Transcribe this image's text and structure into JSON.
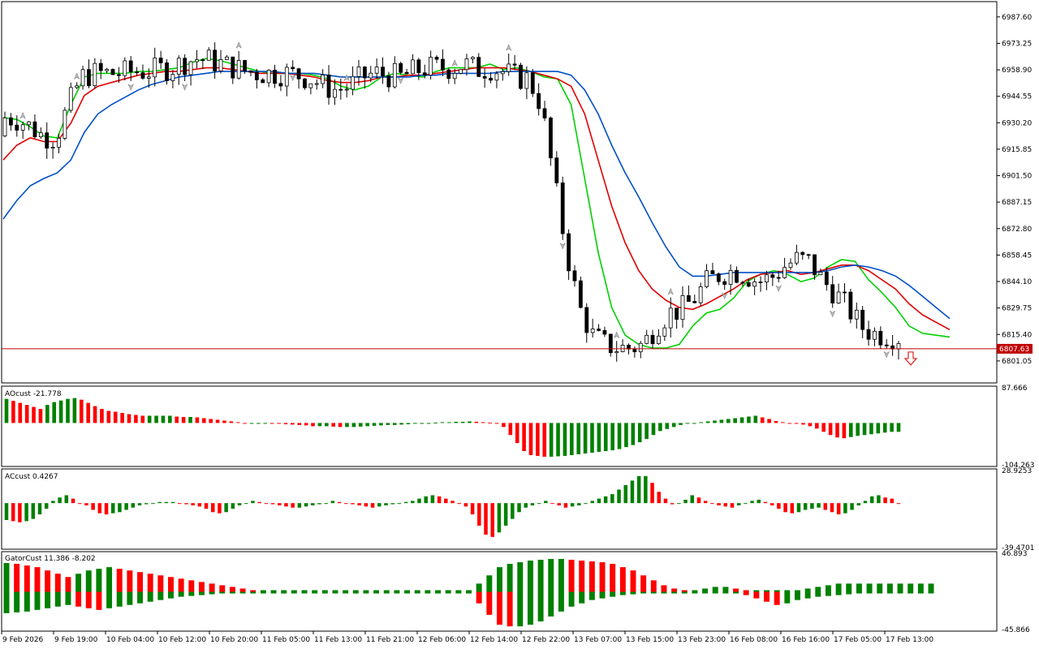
{
  "chart_data": [
    {
      "type": "candlestick",
      "panel": "main",
      "ylim": [
        6790,
        6995
      ],
      "ytick_labels": [
        "6987.60",
        "6973.25",
        "6958.90",
        "6944.55",
        "6930.20",
        "6915.85",
        "6901.50",
        "6887.15",
        "6872.80",
        "6858.45",
        "6844.10",
        "6829.75",
        "6815.40",
        "6801.05"
      ],
      "current_price": "6807.63",
      "colors": {
        "bull_body": "#ffffff",
        "bear_body": "#000000",
        "wick": "#000000",
        "ma_fast": "#00d000",
        "ma_mid": "#e00000",
        "ma_slow": "#0050c8",
        "price_line": "#c00000",
        "signal_arrow": "#e02020",
        "fractal": "#808080"
      },
      "series": [
        {
          "name": "fast",
          "values": [
            6933,
            6932,
            6928,
            6923,
            6922,
            6940,
            6955,
            6957,
            6957,
            6957,
            6958,
            6958,
            6959,
            6960,
            6963,
            6965,
            6964,
            6962,
            6960,
            6958,
            6957,
            6957,
            6957,
            6956,
            6954,
            6950,
            6948,
            6950,
            6955,
            6957,
            6956,
            6955,
            6958,
            6960,
            6960,
            6960,
            6962,
            6959,
            6960,
            6958,
            6955,
            6954,
            6940,
            6900,
            6860,
            6830,
            6815,
            6810,
            6808,
            6808,
            6810,
            6820,
            6827,
            6829,
            6835,
            6844,
            6848,
            6850,
            6848,
            6844,
            6846,
            6852,
            6856,
            6855,
            6845,
            6838,
            6830,
            6820,
            6816,
            6815,
            6814
          ]
        },
        {
          "name": "mid",
          "values": [
            6910,
            6918,
            6922,
            6920,
            6920,
            6930,
            6945,
            6950,
            6952,
            6954,
            6956,
            6957,
            6958,
            6958,
            6959,
            6960,
            6960,
            6959,
            6958,
            6957,
            6957,
            6957,
            6956,
            6955,
            6953,
            6952,
            6952,
            6953,
            6955,
            6955,
            6956,
            6956,
            6957,
            6958,
            6959,
            6960,
            6960,
            6960,
            6959,
            6958,
            6956,
            6954,
            6950,
            6935,
            6910,
            6885,
            6865,
            6850,
            6840,
            6834,
            6830,
            6829,
            6832,
            6836,
            6840,
            6845,
            6848,
            6849,
            6850,
            6848,
            6849,
            6851,
            6853,
            6853,
            6850,
            6845,
            6840,
            6832,
            6826,
            6822,
            6818
          ]
        },
        {
          "name": "slow",
          "values": [
            6878,
            6888,
            6896,
            6900,
            6903,
            6910,
            6925,
            6935,
            6940,
            6944,
            6948,
            6951,
            6953,
            6955,
            6956,
            6957,
            6958,
            6958,
            6958,
            6958,
            6958,
            6957,
            6957,
            6957,
            6956,
            6955,
            6955,
            6955,
            6955,
            6955,
            6955,
            6956,
            6956,
            6957,
            6957,
            6957,
            6957,
            6958,
            6958,
            6958,
            6958,
            6958,
            6956,
            6948,
            6935,
            6918,
            6903,
            6890,
            6876,
            6863,
            6852,
            6847,
            6847,
            6848,
            6849,
            6849,
            6849,
            6849,
            6849,
            6849,
            6849,
            6850,
            6852,
            6853,
            6852,
            6850,
            6847,
            6842,
            6836,
            6830,
            6824
          ]
        }
      ]
    },
    {
      "type": "bar",
      "panel": "AO",
      "title": "AOcust -21.778",
      "ylim": [
        -104.263,
        87.666
      ],
      "ytick_labels": [
        "87.666",
        "-104.263"
      ],
      "colors": {
        "up": "#008000",
        "down": "#ff0000"
      },
      "values": [
        60,
        55,
        50,
        45,
        40,
        35,
        45,
        52,
        56,
        60,
        62,
        58,
        50,
        42,
        35,
        30,
        28,
        25,
        22,
        20,
        18,
        18,
        18,
        18,
        18,
        16,
        15,
        15,
        14,
        12,
        10,
        8,
        6,
        4,
        2,
        0,
        0,
        0,
        0,
        -1,
        -2,
        -3,
        -4,
        -5,
        -6,
        -8,
        -8,
        -8,
        -9,
        -10,
        -10,
        -10,
        -9,
        -8,
        -7,
        -6,
        -5,
        -5,
        -4,
        -3,
        -2,
        -1,
        0,
        1,
        2,
        2,
        3,
        3,
        4,
        3,
        2,
        1,
        0,
        -10,
        -30,
        -50,
        -70,
        -80,
        -82,
        -84,
        -84,
        -83,
        -82,
        -80,
        -78,
        -76,
        -74,
        -72,
        -70,
        -68,
        -65,
        -60,
        -55,
        -48,
        -40,
        -30,
        -20,
        -15,
        -10,
        -5,
        -2,
        0,
        2,
        4,
        6,
        8,
        10,
        12,
        14,
        16,
        18,
        14,
        10,
        5,
        2,
        0,
        -2,
        -4,
        -8,
        -14,
        -22,
        -30,
        -36,
        -38,
        -35,
        -32,
        -30,
        -28,
        -26,
        -24,
        -22,
        -22
      ]
    },
    {
      "type": "bar",
      "panel": "AC",
      "title": "ACcust 0.4267",
      "ylim": [
        -39.4701,
        28.9253
      ],
      "ytick_labels": [
        "28.9253",
        "-39.4701"
      ],
      "colors": {
        "up": "#008000",
        "down": "#ff0000"
      },
      "values": [
        -15,
        -16,
        -17,
        -16,
        -14,
        -10,
        -5,
        2,
        5,
        7,
        4,
        0,
        -2,
        -6,
        -9,
        -10,
        -9,
        -8,
        -6,
        -4,
        -2,
        -1,
        0,
        1,
        1,
        1,
        0,
        -1,
        -2,
        -3,
        -5,
        -8,
        -9,
        -8,
        -5,
        -2,
        0,
        2,
        1,
        0,
        -1,
        -2,
        -3,
        -4,
        -4,
        -3,
        -2,
        -1,
        0,
        2,
        1,
        0,
        -1,
        -2,
        -3,
        -4,
        -3,
        -2,
        -1,
        0,
        1,
        2,
        4,
        6,
        7,
        6,
        4,
        2,
        0,
        -3,
        -10,
        -20,
        -28,
        -30,
        -26,
        -20,
        -14,
        -8,
        -4,
        -2,
        0,
        2,
        0,
        -2,
        -4,
        -3,
        -2,
        0,
        2,
        4,
        6,
        8,
        12,
        16,
        20,
        24,
        24,
        18,
        10,
        4,
        -1,
        0,
        3,
        7,
        5,
        2,
        0,
        -2,
        -3,
        -4,
        -2,
        0,
        2,
        3,
        1,
        -2,
        -5,
        -8,
        -9,
        -8,
        -6,
        -5,
        -4,
        -6,
        -8,
        -10,
        -9,
        -6,
        -2,
        2,
        6,
        7,
        5,
        4,
        0
      ]
    },
    {
      "type": "bar",
      "panel": "Gator",
      "title": "GatorCust 11.386 -8.202",
      "ylim": [
        -45.866,
        46.893
      ],
      "ytick_labels": [
        "46.893",
        "-45.866"
      ],
      "colors": {
        "up": "#008000",
        "down": "#ff0000"
      },
      "upper": [
        35,
        34,
        32,
        30,
        26,
        22,
        18,
        22,
        26,
        28,
        30,
        28,
        26,
        24,
        22,
        20,
        18,
        16,
        14,
        12,
        10,
        8,
        6,
        4,
        2,
        2,
        2,
        2,
        2,
        2,
        2,
        2,
        2,
        2,
        2,
        2,
        2,
        2,
        2,
        2,
        2,
        2,
        2,
        2,
        2,
        2,
        10,
        20,
        30,
        34,
        36,
        38,
        39,
        40,
        40,
        39,
        38,
        37,
        36,
        34,
        30,
        26,
        20,
        14,
        8,
        4,
        2,
        2,
        4,
        6,
        6,
        4,
        2,
        2,
        2,
        2,
        2,
        2,
        4,
        6,
        8,
        10,
        10,
        10,
        10,
        10,
        10,
        10,
        10,
        10,
        10
      ],
      "lower": [
        -26,
        -25,
        -24,
        -22,
        -20,
        -18,
        -16,
        -18,
        -20,
        -22,
        -20,
        -18,
        -16,
        -14,
        -12,
        -10,
        -8,
        -6,
        -5,
        -4,
        -3,
        -2,
        -2,
        -2,
        -2,
        -2,
        -2,
        -2,
        -2,
        -2,
        -2,
        -2,
        -2,
        -2,
        -2,
        -2,
        -2,
        -2,
        -2,
        -2,
        -2,
        -2,
        -2,
        -2,
        -2,
        -2,
        -14,
        -28,
        -40,
        -42,
        -42,
        -40,
        -36,
        -30,
        -24,
        -18,
        -14,
        -10,
        -8,
        -6,
        -4,
        -3,
        -2,
        -2,
        -2,
        -2,
        -2,
        -2,
        -2,
        -2,
        -2,
        -2,
        -4,
        -8,
        -12,
        -16,
        -14,
        -10,
        -8,
        -6,
        -5,
        -4,
        -3,
        -2,
        -2,
        -2,
        -2,
        -2,
        -2,
        -2,
        -2
      ]
    }
  ],
  "time_axis": {
    "labels": [
      "9 Feb 2026",
      "9 Feb 19:00",
      "10 Feb 04:00",
      "10 Feb 12:00",
      "10 Feb 20:00",
      "11 Feb 05:00",
      "11 Feb 13:00",
      "11 Feb 21:00",
      "12 Feb 06:00",
      "12 Feb 14:00",
      "12 Feb 22:00",
      "13 Feb 07:00",
      "13 Feb 15:00",
      "13 Feb 23:00",
      "16 Feb 08:00",
      "16 Feb 16:00",
      "17 Feb 05:00",
      "17 Feb 13:00"
    ]
  }
}
